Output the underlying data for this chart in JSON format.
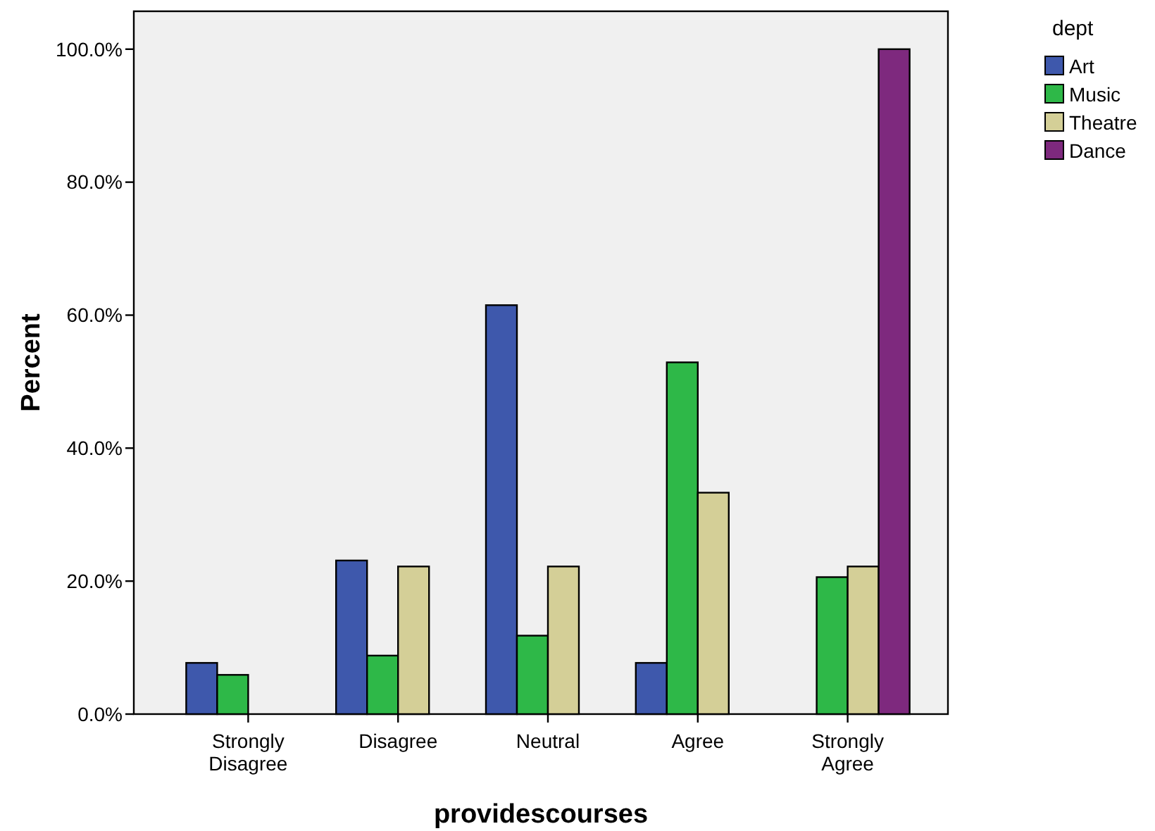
{
  "chart_data": {
    "type": "bar",
    "xlabel": "providescourses",
    "ylabel": "Percent",
    "legend_title": "dept",
    "legend": "right",
    "categories": [
      "Strongly Disagree",
      "Disagree",
      "Neutral",
      "Agree",
      "Strongly Agree"
    ],
    "series": [
      {
        "name": "Art",
        "color": "#3e58ac",
        "values": [
          7.7,
          23.1,
          61.5,
          7.7,
          0
        ]
      },
      {
        "name": "Music",
        "color": "#2eb848",
        "values": [
          5.9,
          8.8,
          11.8,
          52.9,
          20.6
        ]
      },
      {
        "name": "Theatre",
        "color": "#d4cf97",
        "values": [
          0,
          22.2,
          22.2,
          33.3,
          22.2
        ]
      },
      {
        "name": "Dance",
        "color": "#7e297e",
        "values": [
          0,
          0,
          0,
          0,
          100
        ]
      }
    ],
    "ylim": [
      0,
      105.7
    ],
    "yticks": [
      {
        "value": 0,
        "label": "0.0%"
      },
      {
        "value": 20,
        "label": "20.0%"
      },
      {
        "value": 40,
        "label": "40.0%"
      },
      {
        "value": 60,
        "label": "60.0%"
      },
      {
        "value": 80,
        "label": "80.0%"
      },
      {
        "value": 100,
        "label": "100.0%"
      }
    ],
    "grid": false
  }
}
